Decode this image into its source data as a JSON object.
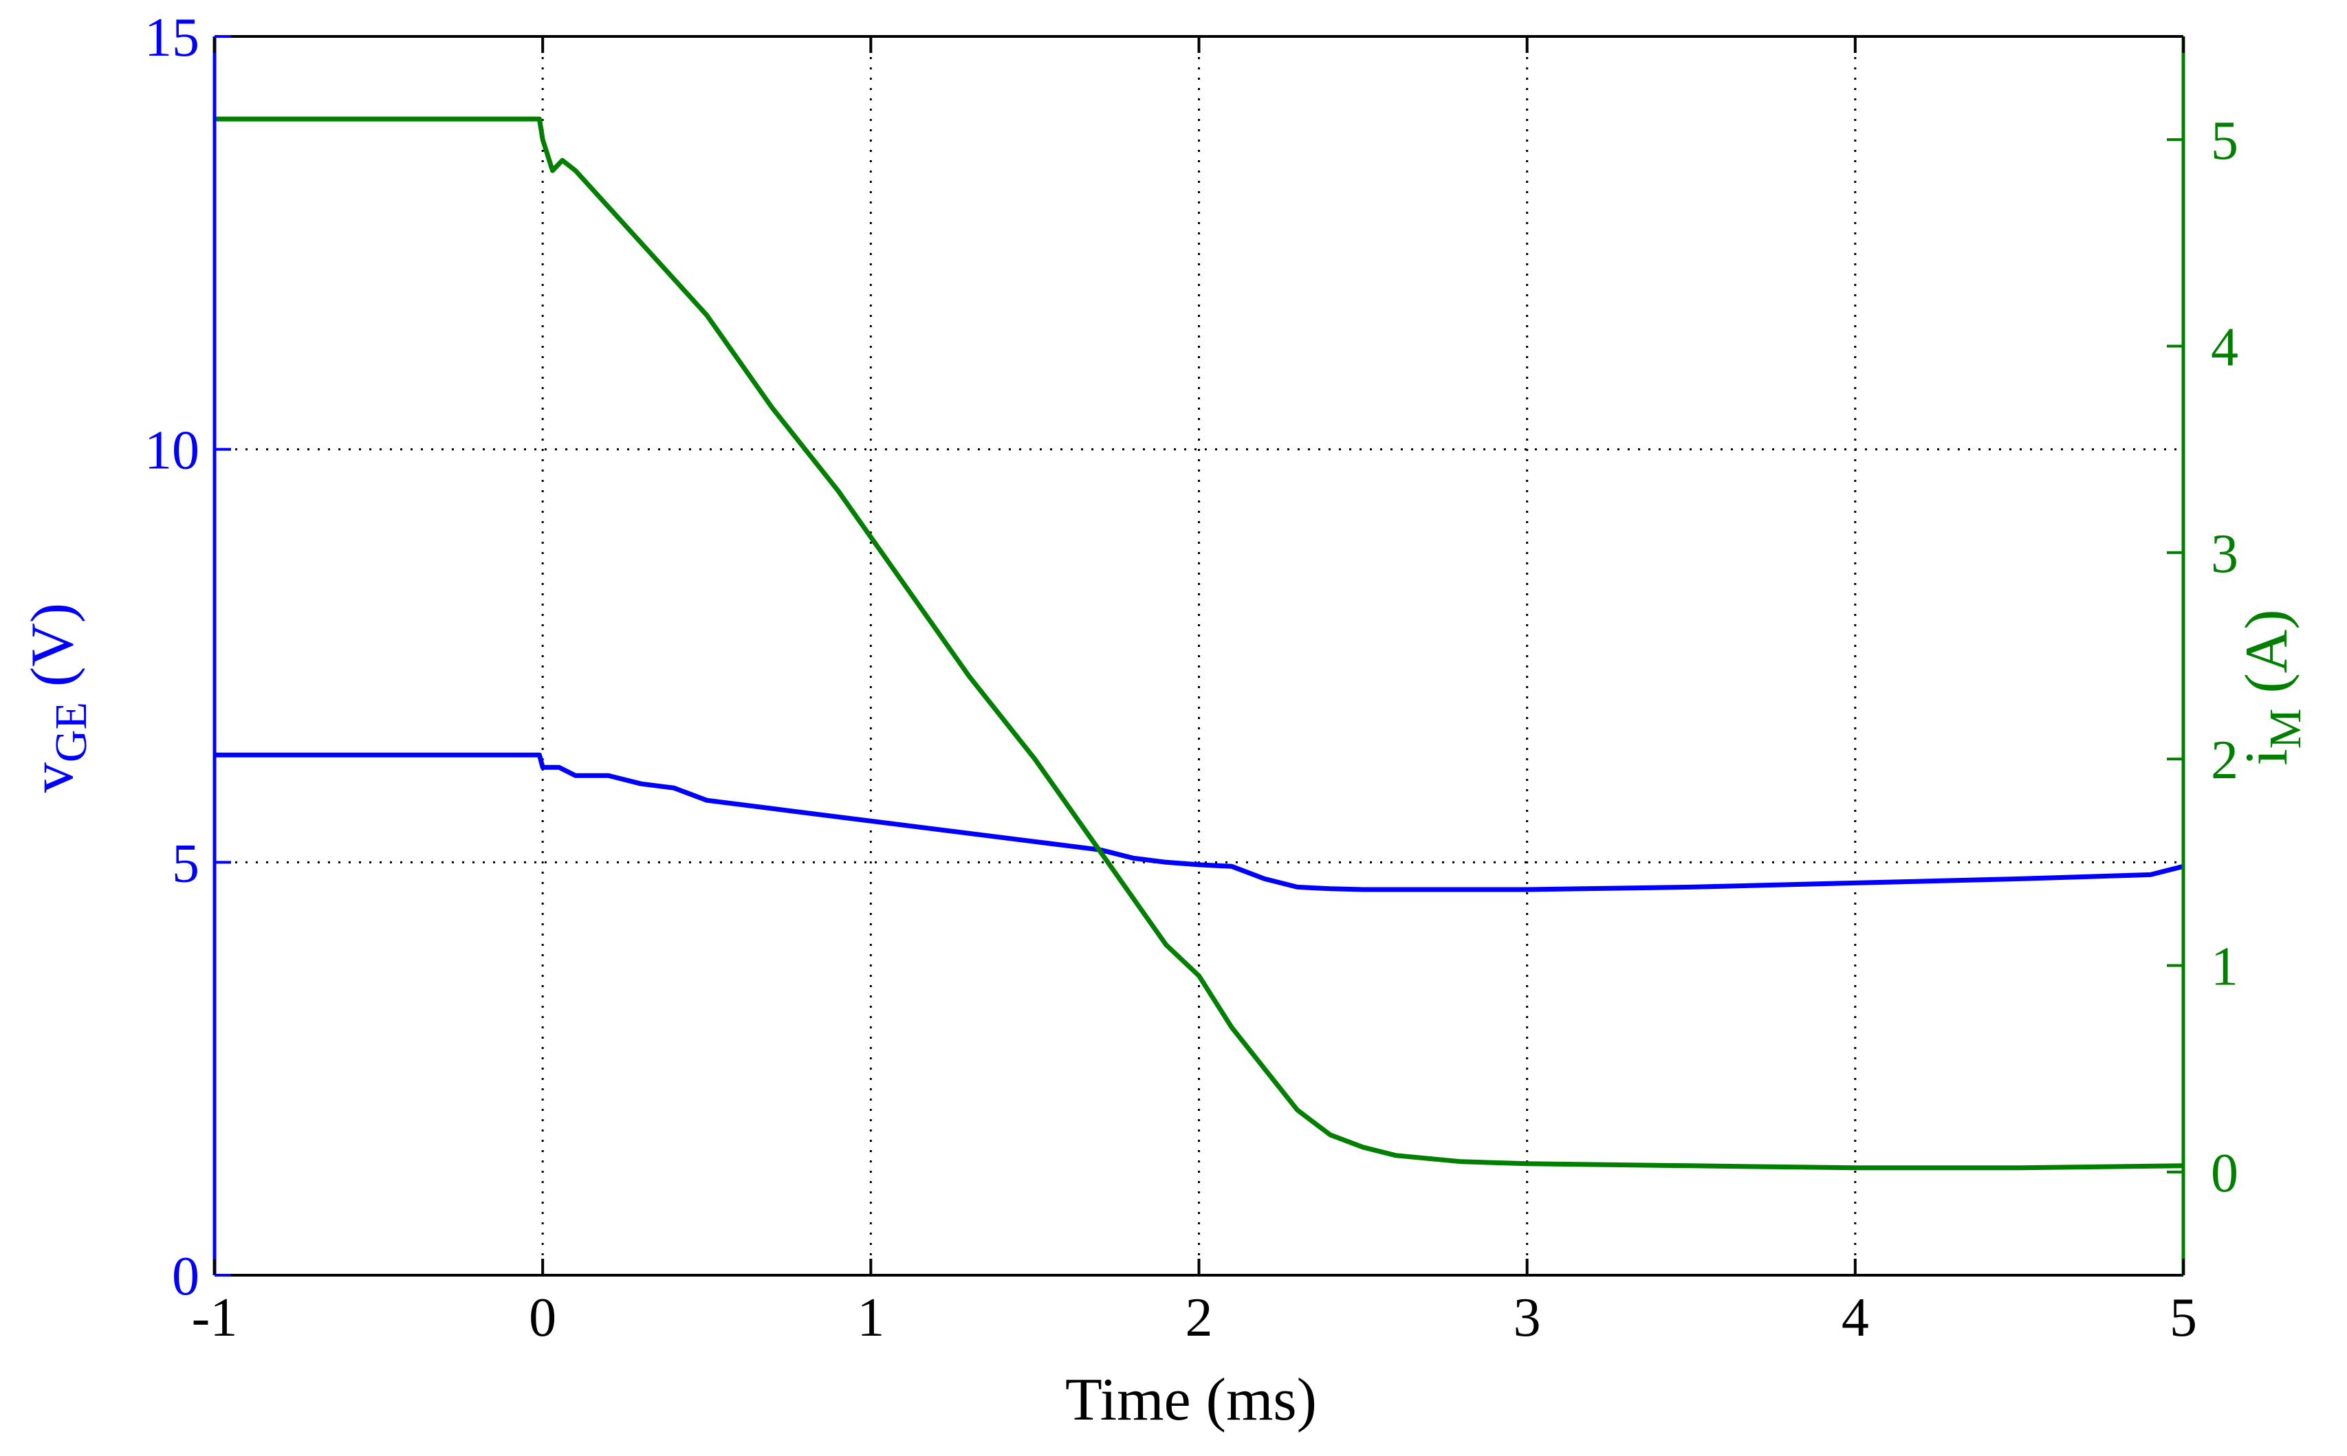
{
  "chart_data": {
    "type": "line",
    "xlabel": "Time (ms)",
    "xlim": [
      -1,
      5
    ],
    "xticks": [
      -1,
      0,
      1,
      2,
      3,
      4,
      5
    ],
    "grid": true,
    "ylabel_left": {
      "main": "v",
      "sub": "GE",
      "unit": " (V)"
    },
    "ylim_left": [
      0,
      15
    ],
    "yticks_left": [
      0,
      5,
      10,
      15
    ],
    "left_color": "#0000ff",
    "ylabel_right": {
      "main": "i",
      "sub": "M",
      "unit": " (A)"
    },
    "ylim_right": [
      -0.5,
      5.5
    ],
    "yticks_right": [
      0,
      1,
      2,
      3,
      4,
      5
    ],
    "right_color": "#007f00",
    "series": [
      {
        "axis": "left",
        "color": "#0000ff",
        "x": [
          -1.0,
          -0.5,
          -0.01,
          0.0,
          0.05,
          0.1,
          0.2,
          0.3,
          0.4,
          0.5,
          0.6,
          0.7,
          0.8,
          0.9,
          1.0,
          1.1,
          1.2,
          1.3,
          1.4,
          1.5,
          1.6,
          1.7,
          1.8,
          1.9,
          2.0,
          2.1,
          2.2,
          2.3,
          2.4,
          2.5,
          3.0,
          3.5,
          4.0,
          4.5,
          4.9,
          5.0
        ],
        "y": [
          6.3,
          6.3,
          6.3,
          6.15,
          6.15,
          6.05,
          6.05,
          5.95,
          5.9,
          5.75,
          5.7,
          5.65,
          5.6,
          5.55,
          5.5,
          5.45,
          5.4,
          5.35,
          5.3,
          5.25,
          5.2,
          5.15,
          5.05,
          5.0,
          4.97,
          4.95,
          4.8,
          4.7,
          4.68,
          4.67,
          4.67,
          4.7,
          4.75,
          4.8,
          4.85,
          4.95
        ]
      },
      {
        "axis": "right",
        "color": "#007f00",
        "x": [
          -1.0,
          -0.5,
          -0.01,
          0.0,
          0.03,
          0.06,
          0.1,
          0.3,
          0.5,
          0.7,
          0.9,
          1.1,
          1.3,
          1.5,
          1.7,
          1.9,
          2.0,
          2.1,
          2.2,
          2.3,
          2.4,
          2.5,
          2.6,
          2.8,
          3.0,
          3.5,
          4.0,
          4.5,
          5.0
        ],
        "y": [
          5.1,
          5.1,
          5.1,
          5.0,
          4.85,
          4.9,
          4.85,
          4.5,
          4.15,
          3.7,
          3.3,
          2.85,
          2.4,
          2.0,
          1.55,
          1.1,
          0.95,
          0.7,
          0.5,
          0.3,
          0.18,
          0.12,
          0.08,
          0.05,
          0.04,
          0.03,
          0.02,
          0.02,
          0.03
        ]
      }
    ]
  }
}
